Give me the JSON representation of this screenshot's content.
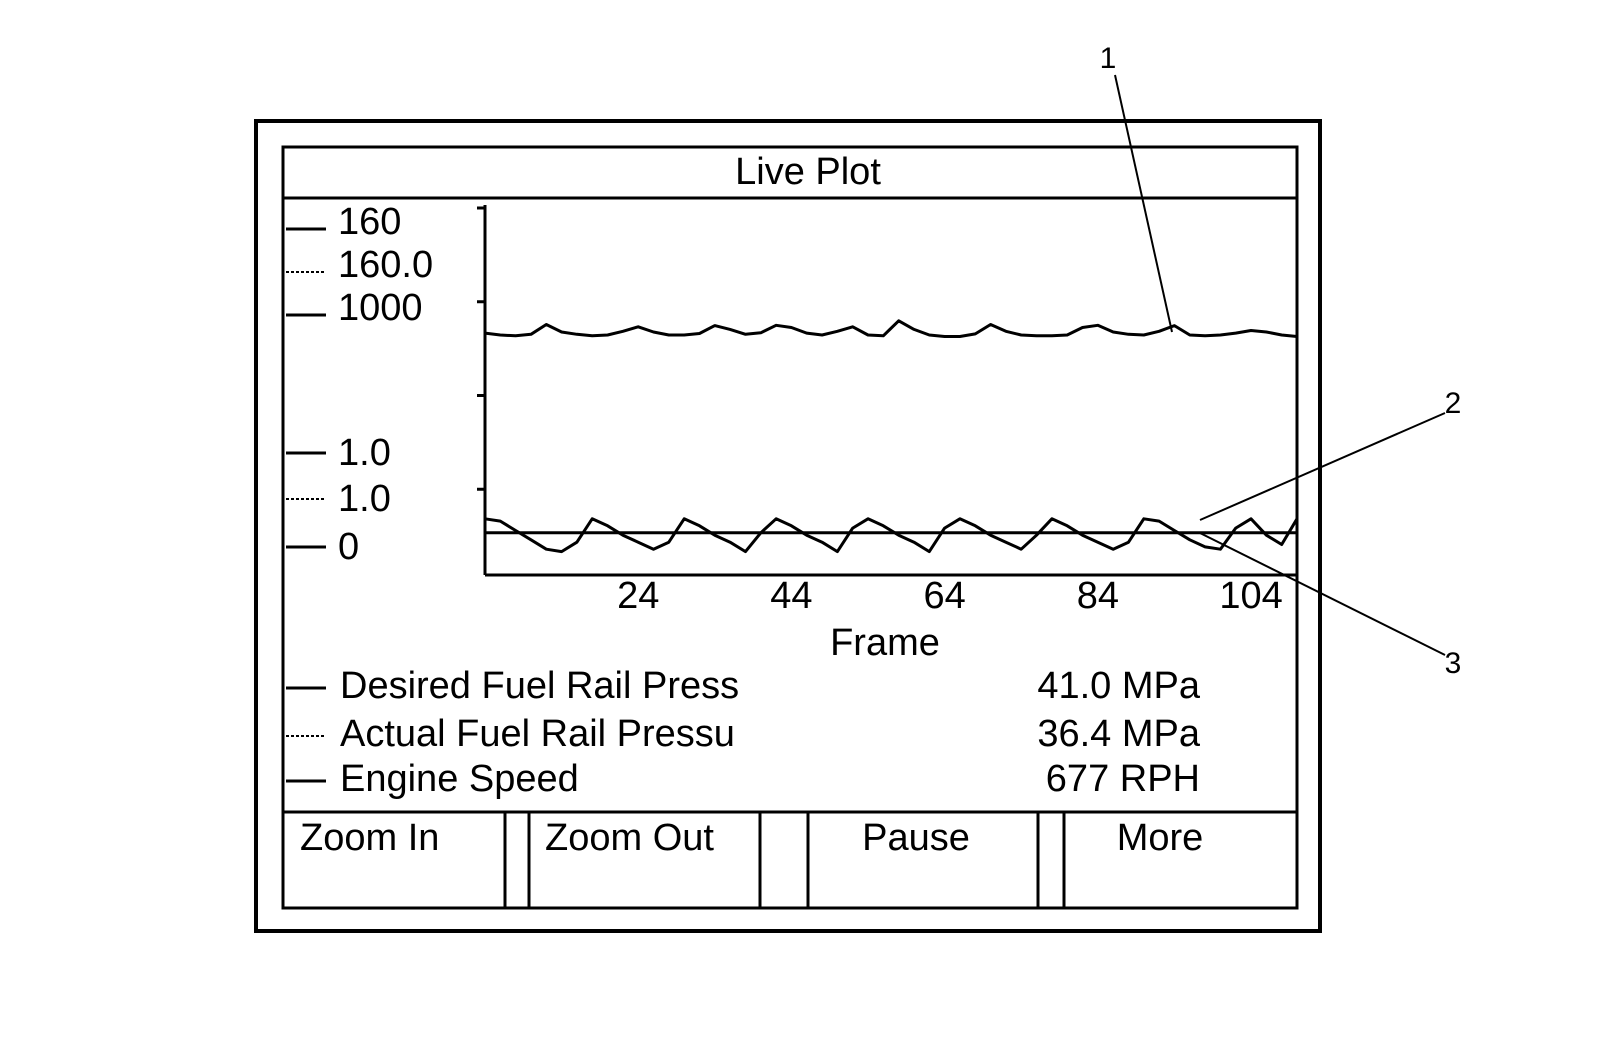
{
  "window": {
    "title": "Live Plot"
  },
  "chart_data": {
    "type": "line",
    "xlabel": "Frame",
    "x": [
      4,
      6,
      8,
      10,
      12,
      14,
      16,
      18,
      20,
      22,
      24,
      26,
      28,
      30,
      32,
      34,
      36,
      38,
      40,
      42,
      44,
      46,
      48,
      50,
      52,
      54,
      56,
      58,
      60,
      62,
      64,
      66,
      68,
      70,
      72,
      74,
      76,
      78,
      80,
      82,
      84,
      86,
      88,
      90,
      92,
      94,
      96,
      98,
      100,
      102,
      104,
      106,
      108,
      110
    ],
    "xlim": [
      4,
      110
    ],
    "xticks": [
      24,
      44,
      64,
      84,
      104
    ],
    "ylim": [
      0,
      160
    ],
    "yticks": [
      40,
      80,
      120,
      160
    ],
    "y2lim": [
      0,
      1000
    ],
    "series": [
      {
        "name": "Desired Fuel Rail Press",
        "reading": "41.0 MPa",
        "scale_top": "160",
        "scale_bottom": "1.0",
        "line_style": "solid",
        "values": [
          18,
          18,
          18,
          18,
          18,
          18,
          18,
          18,
          18,
          18,
          18,
          18,
          18,
          18,
          18,
          18,
          18,
          18,
          18,
          18,
          18,
          18,
          18,
          18,
          18,
          18,
          18,
          18,
          18,
          18,
          18,
          18,
          18,
          18,
          18,
          18,
          18,
          18,
          18,
          18,
          18,
          18,
          18,
          18,
          18,
          18,
          18,
          18,
          18,
          18,
          18,
          18,
          18,
          18
        ]
      },
      {
        "name": "Actual Fuel Rail Pressu",
        "reading": "36.4 MPa",
        "scale_top": "160.0",
        "scale_bottom": "1.0",
        "line_style": "dotted",
        "values": [
          24,
          23,
          19,
          15,
          11,
          10,
          14,
          24,
          21,
          17,
          14,
          11,
          14,
          24,
          21,
          17,
          14,
          10,
          18,
          24,
          21,
          17,
          14,
          10,
          20,
          24,
          21,
          17,
          14,
          10,
          20,
          24,
          21,
          17,
          14,
          11,
          17,
          24,
          21,
          17,
          14,
          11,
          14,
          24,
          23,
          19,
          15,
          12,
          11,
          20,
          24,
          17,
          13,
          24
        ]
      },
      {
        "name": "Engine Speed",
        "reading": "677 RPH",
        "scale_top": "1000",
        "scale_bottom": "0",
        "line_style": "solid",
        "axis": "y2",
        "values": [
          645,
          640,
          638,
          642,
          668,
          648,
          642,
          638,
          640,
          650,
          662,
          648,
          640,
          640,
          644,
          665,
          655,
          642,
          646,
          666,
          660,
          645,
          640,
          650,
          662,
          640,
          638,
          678,
          655,
          640,
          636,
          636,
          643,
          668,
          650,
          640,
          638,
          638,
          640,
          660,
          666,
          648,
          642,
          640,
          650,
          665,
          640,
          638,
          640,
          645,
          652,
          648,
          640,
          636
        ]
      }
    ]
  },
  "callouts": [
    "1",
    "2",
    "3"
  ],
  "buttons": [
    "Zoom In",
    "Zoom Out",
    "Pause",
    "More"
  ]
}
